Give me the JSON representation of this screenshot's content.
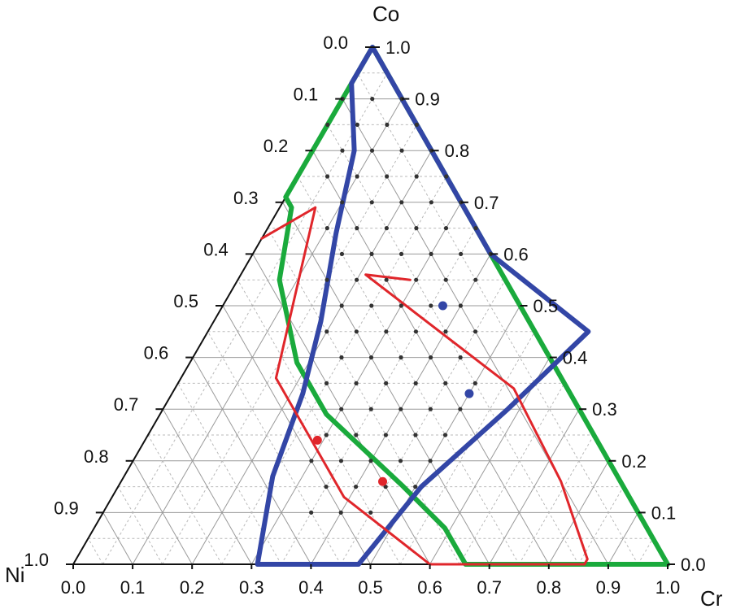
{
  "chart_data": {
    "type": "ternary",
    "vertices": {
      "top": "Co",
      "left": "Ni",
      "right": "Cr"
    },
    "tick_values": [
      0.0,
      0.1,
      0.2,
      0.3,
      0.4,
      0.5,
      0.6,
      0.7,
      0.8,
      0.9,
      1.0
    ],
    "tick_labels": [
      "0.0",
      "0.1",
      "0.2",
      "0.3",
      "0.4",
      "0.5",
      "0.6",
      "0.7",
      "0.8",
      "0.9",
      "1.0"
    ],
    "grid": true,
    "colors": {
      "green": "#1aaa3c",
      "blue": "#3346a6",
      "red": "#e0262b",
      "points": "#333333",
      "axis": "#111111",
      "grid": "#b9b9b9"
    },
    "series": [
      {
        "kind": "boundary",
        "color": "green",
        "points": [
          {
            "Cr": 0.0,
            "Co": 1.0
          },
          {
            "Cr": 0.0,
            "Co": 0.71
          },
          {
            "Cr": 0.02,
            "Co": 0.69
          },
          {
            "Cr": 0.07,
            "Co": 0.55
          },
          {
            "Cr": 0.18,
            "Co": 0.39
          },
          {
            "Cr": 0.28,
            "Co": 0.29
          },
          {
            "Cr": 0.48,
            "Co": 0.15
          },
          {
            "Cr": 0.59,
            "Co": 0.07
          },
          {
            "Cr": 0.66,
            "Co": 0.0
          },
          {
            "Cr": 1.0,
            "Co": 0.0
          },
          {
            "Cr": 0.4,
            "Co": 0.6
          },
          {
            "Cr": 0.0,
            "Co": 1.0
          }
        ]
      },
      {
        "kind": "boundary",
        "color": "blue",
        "points": [
          {
            "Cr": 0.0,
            "Co": 1.0
          },
          {
            "Cr": 0.0,
            "Co": 0.93
          },
          {
            "Cr": 0.07,
            "Co": 0.8
          },
          {
            "Cr": 0.12,
            "Co": 0.64
          },
          {
            "Cr": 0.18,
            "Co": 0.47
          },
          {
            "Cr": 0.22,
            "Co": 0.33
          },
          {
            "Cr": 0.25,
            "Co": 0.17
          },
          {
            "Cr": 0.31,
            "Co": 0.0
          },
          {
            "Cr": 0.48,
            "Co": 0.0
          },
          {
            "Cr": 0.51,
            "Co": 0.15
          },
          {
            "Cr": 0.58,
            "Co": 0.3
          },
          {
            "Cr": 0.64,
            "Co": 0.45
          },
          {
            "Cr": 0.4,
            "Co": 0.6
          },
          {
            "Cr": 0.0,
            "Co": 1.0
          }
        ]
      },
      {
        "kind": "boundary",
        "color": "red",
        "points": [
          {
            "Cr": 0.0,
            "Co": 0.63
          },
          {
            "Cr": 0.06,
            "Co": 0.69
          },
          {
            "Cr": 0.16,
            "Co": 0.36
          },
          {
            "Cr": 0.39,
            "Co": 0.13
          },
          {
            "Cr": 0.6,
            "Co": 0.0
          },
          {
            "Cr": 0.66,
            "Co": 0.0
          }
        ]
      },
      {
        "kind": "boundary",
        "color": "red",
        "points": [
          {
            "Cr": 0.64,
            "Co": 0.0
          },
          {
            "Cr": 0.86,
            "Co": 0.0
          }
        ]
      },
      {
        "kind": "boundary",
        "color": "red",
        "points": [
          {
            "Cr": 0.29,
            "Co": 0.55
          },
          {
            "Cr": 0.21,
            "Co": 0.56
          },
          {
            "Cr": 0.57,
            "Co": 0.34
          },
          {
            "Cr": 0.74,
            "Co": 0.16
          },
          {
            "Cr": 0.86,
            "Co": 0.01
          },
          {
            "Cr": 0.86,
            "Co": 0.0
          }
        ]
      }
    ],
    "special_points": [
      {
        "Cr": 0.37,
        "Co": 0.5,
        "color": "blue"
      },
      {
        "Cr": 0.5,
        "Co": 0.33,
        "color": "blue"
      },
      {
        "Cr": 0.29,
        "Co": 0.24,
        "color": "red"
      },
      {
        "Cr": 0.44,
        "Co": 0.16,
        "color": "red"
      }
    ]
  }
}
